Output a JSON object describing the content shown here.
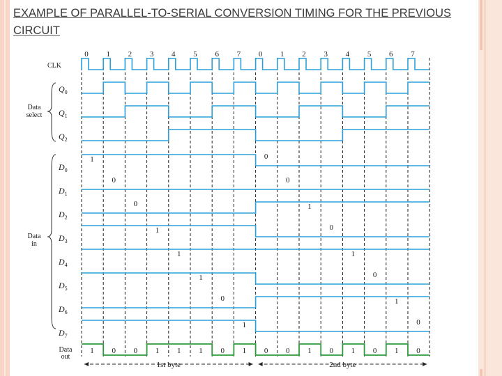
{
  "slide": {
    "title": "EXAMPLE OF PARALLEL-TO-SERIAL CONVERSION TIMING FOR THE PREVIOUS CIRCUIT"
  },
  "diagram": {
    "clock_numbers": [
      "0",
      "1",
      "2",
      "3",
      "4",
      "5",
      "6",
      "7",
      "0",
      "1",
      "2",
      "3",
      "4",
      "5",
      "6",
      "7"
    ],
    "signal_labels": {
      "clk": "CLK",
      "q0": "Q0",
      "q1": "Q1",
      "q2": "Q2",
      "d0": "D0",
      "d1": "D1",
      "d2": "D2",
      "d3": "D3",
      "d4": "D4",
      "d5": "D5",
      "d6": "D6",
      "d7": "D7",
      "data_out": "Data\nout"
    },
    "group_labels": {
      "data_select": "Data\nselect",
      "data_in": "Data\nin"
    },
    "select_waveforms": {
      "q0": [
        0,
        1,
        0,
        1,
        0,
        1,
        0,
        1,
        0,
        1,
        0,
        1,
        0,
        1,
        0,
        1
      ],
      "q1": [
        0,
        0,
        1,
        1,
        0,
        0,
        1,
        1,
        0,
        0,
        1,
        1,
        0,
        0,
        1,
        1
      ],
      "q2": [
        0,
        0,
        0,
        0,
        1,
        1,
        1,
        1,
        0,
        0,
        0,
        0,
        1,
        1,
        1,
        1
      ]
    },
    "data_in": {
      "byte1": [
        "1",
        "0",
        "0",
        "1",
        "1",
        "1",
        "0",
        "1"
      ],
      "byte2": [
        "0",
        "0",
        "1",
        "0",
        "1",
        "0",
        "1",
        "0"
      ]
    },
    "data_out_bits": [
      "1",
      "0",
      "0",
      "1",
      "1",
      "1",
      "0",
      "1",
      "0",
      "0",
      "1",
      "0",
      "1",
      "0",
      "1",
      "0"
    ],
    "byte_labels": [
      "1st byte",
      "2nd byte"
    ],
    "colors": {
      "wave": "#2b9fd8",
      "data_out_wave": "#2f9a3c",
      "divider": "#222222",
      "label": "#1a1a1a"
    }
  }
}
